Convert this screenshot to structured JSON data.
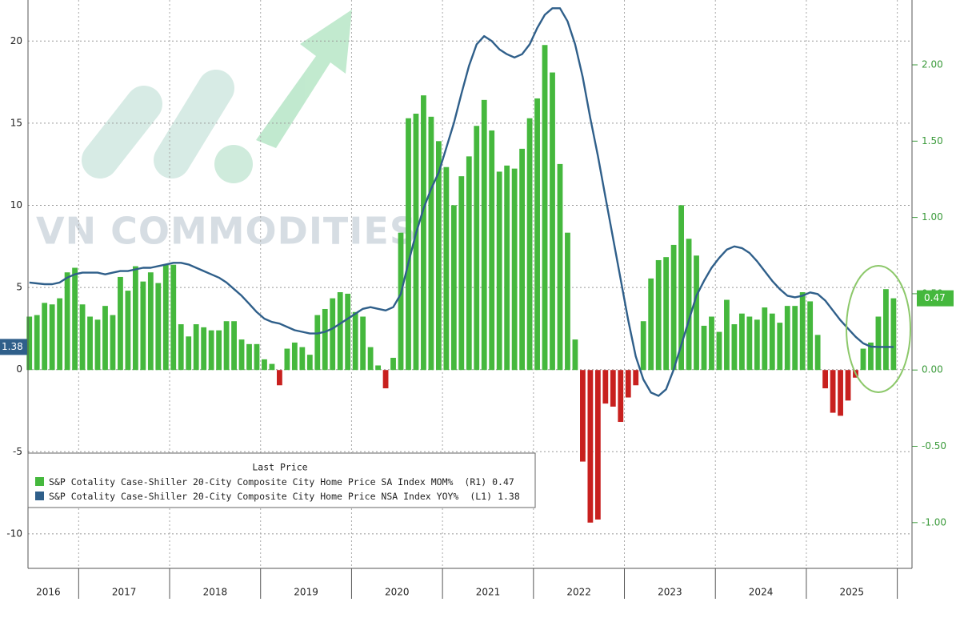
{
  "chart_data": {
    "type": "bar",
    "watermark": "VN COMMODITIES",
    "legend_title": "Last Price",
    "categories": [
      null,
      null,
      null,
      "2016",
      null,
      null,
      null,
      null,
      null,
      null,
      null,
      null,
      null,
      "2017",
      null,
      null,
      null,
      null,
      null,
      null,
      null,
      null,
      null,
      null,
      null,
      "2018",
      null,
      null,
      null,
      null,
      null,
      null,
      null,
      null,
      null,
      null,
      null,
      "2019",
      null,
      null,
      null,
      null,
      null,
      null,
      null,
      null,
      null,
      null,
      null,
      "2020",
      null,
      null,
      null,
      null,
      null,
      null,
      null,
      null,
      null,
      null,
      null,
      "2021",
      null,
      null,
      null,
      null,
      null,
      null,
      null,
      null,
      null,
      null,
      null,
      "2022",
      null,
      null,
      null,
      null,
      null,
      null,
      null,
      null,
      null,
      null,
      null,
      "2023",
      null,
      null,
      null,
      null,
      null,
      null,
      null,
      null,
      null,
      null,
      null,
      "2024",
      null,
      null,
      null,
      null,
      null,
      null,
      null,
      null,
      null,
      null,
      null,
      "2025",
      null,
      null,
      null,
      null,
      null
    ],
    "series": [
      {
        "name": "S&P Cotality Case-Shiller 20-City Composite City Home Price SA Index MOM%",
        "legend_tag": "(R1)",
        "type": "bar",
        "axis": "y2",
        "color": "#45b83d",
        "negative_color": "#c8201e",
        "values": [
          0.35,
          0.36,
          0.44,
          0.43,
          0.47,
          0.64,
          0.67,
          0.43,
          0.35,
          0.33,
          0.42,
          0.36,
          0.61,
          0.52,
          0.68,
          0.58,
          0.64,
          0.57,
          0.69,
          0.69,
          0.3,
          0.22,
          0.3,
          0.28,
          0.26,
          0.26,
          0.32,
          0.32,
          0.2,
          0.17,
          0.17,
          0.07,
          0.04,
          -0.1,
          0.14,
          0.18,
          0.15,
          0.1,
          0.36,
          0.4,
          0.47,
          0.51,
          0.5,
          0.38,
          0.35,
          0.15,
          0.03,
          -0.12,
          0.08,
          0.9,
          1.65,
          1.68,
          1.8,
          1.66,
          1.5,
          1.33,
          1.08,
          1.27,
          1.4,
          1.6,
          1.77,
          1.57,
          1.3,
          1.34,
          1.32,
          1.45,
          1.65,
          1.78,
          2.13,
          1.95,
          1.35,
          0.9,
          0.2,
          -0.6,
          -1.0,
          -0.98,
          -0.22,
          -0.24,
          -0.34,
          -0.18,
          -0.1,
          0.32,
          0.6,
          0.72,
          0.74,
          0.82,
          1.08,
          0.86,
          0.75,
          0.29,
          0.35,
          0.25,
          0.46,
          0.3,
          0.37,
          0.35,
          0.33,
          0.41,
          0.37,
          0.31,
          0.42,
          0.42,
          0.51,
          0.45,
          0.23,
          -0.12,
          -0.28,
          -0.3,
          -0.2,
          -0.05,
          0.14,
          0.18,
          0.35,
          0.53,
          0.47
        ]
      },
      {
        "name": "S&P Cotality Case-Shiller 20-City Composite City Home Price NSA Index YOY%",
        "legend_tag": "(L1)",
        "type": "line",
        "axis": "y",
        "color": "#2f5f8a",
        "values": [
          5.3,
          5.25,
          5.2,
          5.2,
          5.3,
          5.6,
          5.8,
          5.9,
          5.9,
          5.9,
          5.8,
          5.9,
          6.0,
          6.0,
          6.1,
          6.2,
          6.2,
          6.3,
          6.4,
          6.5,
          6.5,
          6.4,
          6.2,
          6.0,
          5.8,
          5.6,
          5.3,
          4.9,
          4.5,
          4.0,
          3.5,
          3.1,
          2.9,
          2.8,
          2.6,
          2.4,
          2.3,
          2.2,
          2.2,
          2.3,
          2.5,
          2.8,
          3.1,
          3.4,
          3.7,
          3.8,
          3.7,
          3.6,
          3.8,
          4.6,
          6.5,
          8.3,
          9.8,
          11.0,
          12.0,
          13.5,
          15.0,
          16.8,
          18.5,
          19.8,
          20.3,
          20.0,
          19.5,
          19.2,
          19.0,
          19.2,
          19.8,
          20.8,
          21.6,
          22.0,
          22.0,
          21.2,
          19.8,
          17.8,
          15.3,
          13.0,
          10.5,
          8.0,
          5.5,
          3.0,
          0.8,
          -0.6,
          -1.4,
          -1.6,
          -1.2,
          0.0,
          1.5,
          3.0,
          4.5,
          5.4,
          6.2,
          6.8,
          7.3,
          7.5,
          7.4,
          7.1,
          6.6,
          6.0,
          5.4,
          4.9,
          4.5,
          4.4,
          4.5,
          4.7,
          4.6,
          4.2,
          3.6,
          3.0,
          2.5,
          2.0,
          1.6,
          1.4,
          1.38,
          1.38,
          1.38
        ]
      }
    ],
    "ylim": [
      -12.1,
      22.5
    ],
    "yticks": [
      -10,
      -5,
      0,
      5,
      10,
      15,
      20
    ],
    "y2lim": [
      -1.3,
      2.425
    ],
    "y2ticks": [
      {
        "value": -1,
        "label": "-1.00"
      },
      {
        "value": -0.5,
        "label": "-0.50"
      },
      {
        "value": 0,
        "label": "0.00"
      },
      {
        "value": 0.5,
        "label": "0.50"
      },
      {
        "value": 1,
        "label": "1.00"
      },
      {
        "value": 1.5,
        "label": "1.50"
      },
      {
        "value": 2,
        "label": "2.00"
      }
    ],
    "grid": true
  }
}
